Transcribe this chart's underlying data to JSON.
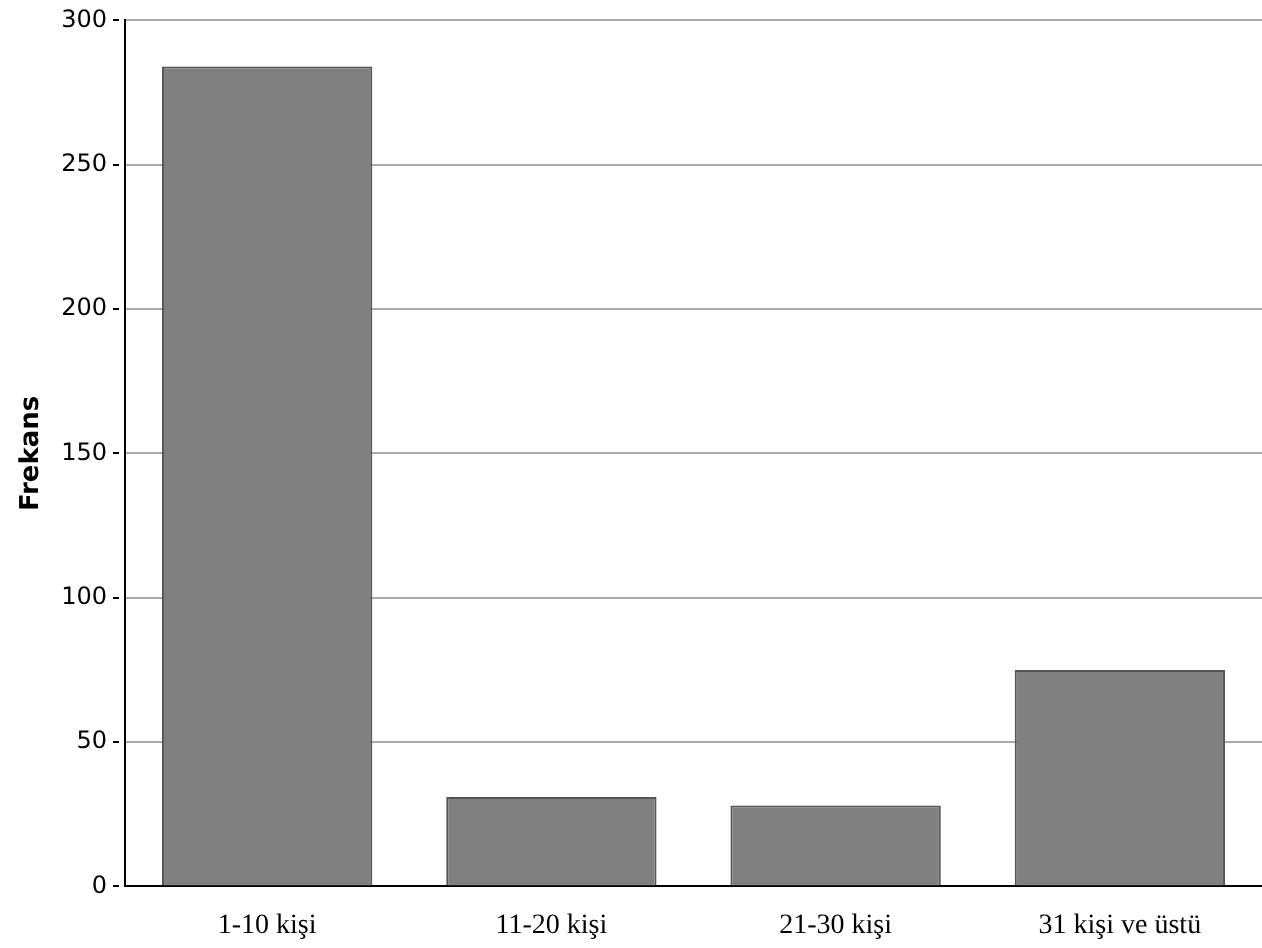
{
  "chart_data": {
    "type": "bar",
    "ylabel": "Frekans",
    "categories": [
      "1-10 kişi",
      "11-20 kişi",
      "21-30 kişi",
      "31 kişi ve üstü"
    ],
    "values": [
      284,
      31,
      28,
      75
    ],
    "color": "#808080",
    "ylim": [
      0,
      300
    ],
    "yticks": [
      0,
      50,
      100,
      150,
      200,
      250,
      300
    ],
    "grid": "y",
    "legend": false
  }
}
